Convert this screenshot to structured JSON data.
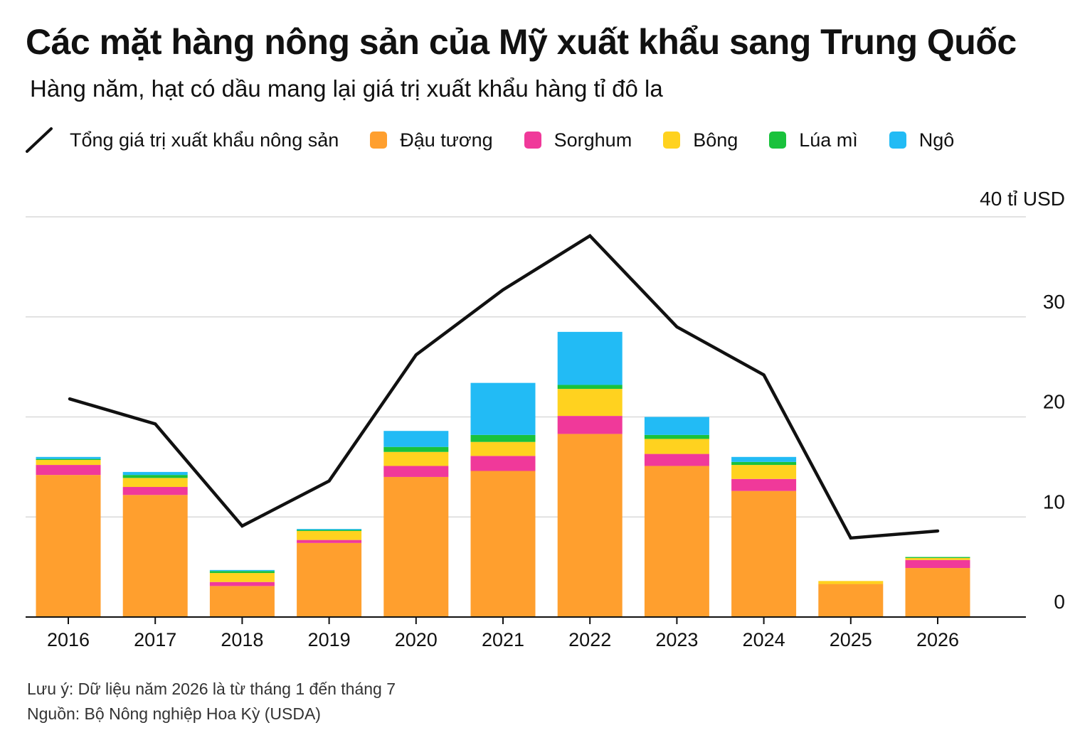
{
  "title": "Các mặt hàng nông sản của Mỹ xuất khẩu sang Trung Quốc",
  "subtitle": "Hàng năm, hạt có dầu mang lại giá trị xuất khẩu hàng tỉ đô la",
  "legend": [
    {
      "label": "Tổng giá trị xuất khẩu nông sản",
      "kind": "line",
      "color": "#111111"
    },
    {
      "label": "Đậu tương",
      "kind": "swatch",
      "color": "#FF9F2E"
    },
    {
      "label": "Sorghum",
      "kind": "swatch",
      "color": "#F0399A"
    },
    {
      "label": "Bông",
      "kind": "swatch",
      "color": "#FFD21F"
    },
    {
      "label": "Lúa mì",
      "kind": "swatch",
      "color": "#19C23C"
    },
    {
      "label": "Ngô",
      "kind": "swatch",
      "color": "#22BBF5"
    }
  ],
  "chart_data": {
    "type": "bar",
    "stacked": true,
    "categories": [
      "2016",
      "2017",
      "2018",
      "2019",
      "2020",
      "2021",
      "2022",
      "2023",
      "2024",
      "2025",
      "2026"
    ],
    "series": [
      {
        "name": "Đậu tương",
        "color": "#FF9F2E",
        "values": [
          14.2,
          12.2,
          3.1,
          7.4,
          14.0,
          14.6,
          18.3,
          15.1,
          12.6,
          3.3,
          4.9
        ]
      },
      {
        "name": "Sorghum",
        "color": "#F0399A",
        "values": [
          1.0,
          0.8,
          0.4,
          0.3,
          1.1,
          1.5,
          1.8,
          1.2,
          1.2,
          0.0,
          0.8
        ]
      },
      {
        "name": "Bông",
        "color": "#FFD21F",
        "values": [
          0.5,
          0.9,
          0.9,
          0.9,
          1.4,
          1.4,
          2.7,
          1.5,
          1.4,
          0.3,
          0.2
        ]
      },
      {
        "name": "Lúa mì",
        "color": "#19C23C",
        "values": [
          0.1,
          0.3,
          0.2,
          0.1,
          0.5,
          0.7,
          0.4,
          0.4,
          0.3,
          0.0,
          0.1
        ]
      },
      {
        "name": "Ngô",
        "color": "#22BBF5",
        "values": [
          0.2,
          0.3,
          0.1,
          0.1,
          1.6,
          5.2,
          5.3,
          1.8,
          0.5,
          0.0,
          0.0
        ]
      }
    ],
    "line": {
      "name": "Tổng giá trị xuất khẩu nông sản",
      "color": "#111111",
      "values": [
        21.8,
        19.3,
        9.1,
        13.6,
        26.2,
        32.7,
        38.1,
        29.0,
        24.2,
        7.9,
        8.6
      ]
    },
    "yticks": [
      0,
      10,
      20,
      30,
      40
    ],
    "ytick_labels": [
      "0",
      "10",
      "20",
      "30",
      "40 tỉ USD"
    ],
    "ylim": [
      0,
      40
    ],
    "grid": true
  },
  "note": "Lưu ý: Dữ liệu năm 2026 là từ tháng 1 đến tháng 7",
  "source": "Nguồn: Bộ Nông nghiệp Hoa Kỳ (USDA)"
}
